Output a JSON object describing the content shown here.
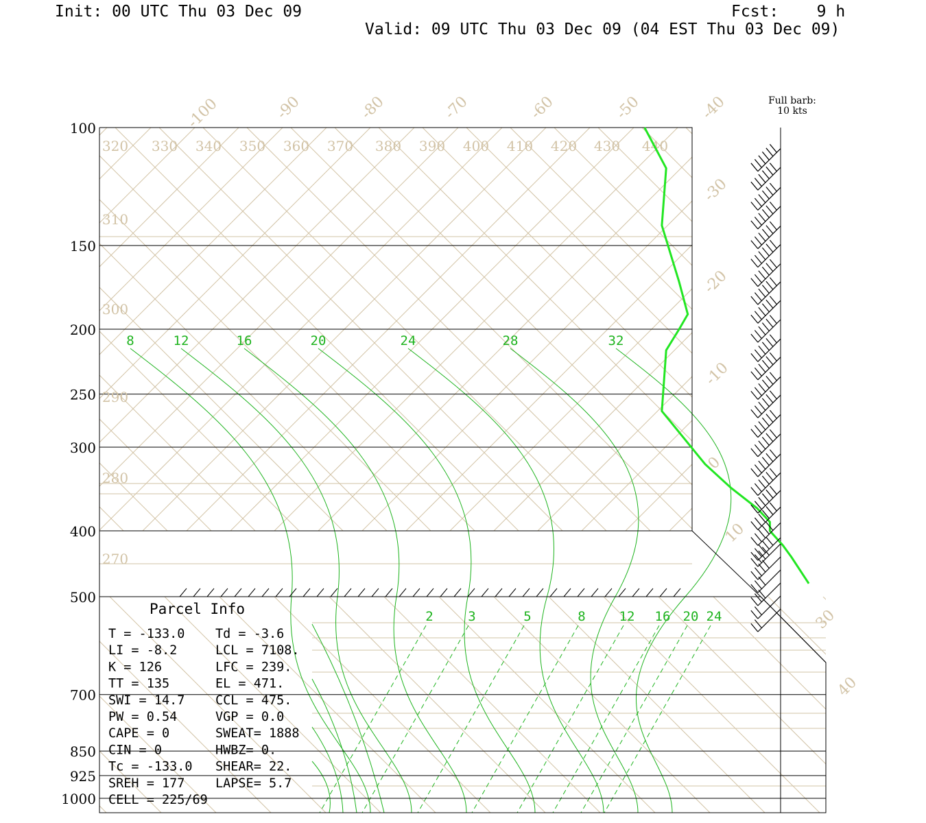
{
  "header": {
    "init": "Init: 00 UTC Thu 03 Dec 09",
    "fcst": "Fcst:    9 h",
    "valid": "Valid: 09 UTC Thu 03 Dec 09 (04 EST Thu 03 Dec 09)"
  },
  "barb_note": {
    "line1": "Full barb:",
    "line2": "10 kts"
  },
  "colors": {
    "isotherm": "#d2c3a6",
    "mixing": "#1db31d",
    "profile": "#22e622",
    "frame": "#000000"
  },
  "chart_data": {
    "type": "skew-t log-p",
    "pressure_levels": [
      "100",
      "150",
      "200",
      "250",
      "300",
      "400",
      "500",
      "700",
      "850",
      "925",
      "1000"
    ],
    "isotherms": [
      "-100",
      "-90",
      "-80",
      "-70",
      "-60",
      "-50",
      "-40",
      "-30",
      "-20",
      "-10",
      "0",
      "10",
      "30",
      "40"
    ],
    "dry_adiabats": [
      "320",
      "330",
      "340",
      "350",
      "360",
      "370",
      "380",
      "390",
      "400",
      "410",
      "420",
      "430",
      "440",
      "310",
      "300",
      "280",
      "270"
    ],
    "dry_adiabat_290_label": "290",
    "mixing_ratio_upper": [
      "8",
      "12",
      "16",
      "20",
      "24",
      "28",
      "32"
    ],
    "mixing_ratio_lower": [
      "2",
      "3",
      "5",
      "8",
      "12",
      "16",
      "20",
      "24"
    ],
    "temperature_profile": [
      {
        "p": 100,
        "t": -51
      },
      {
        "p": 115,
        "t": -46
      },
      {
        "p": 140,
        "t": -47
      },
      {
        "p": 170,
        "t": -43
      },
      {
        "p": 190,
        "t": -41
      },
      {
        "p": 200,
        "t": -43
      },
      {
        "p": 215,
        "t": -46
      },
      {
        "p": 265,
        "t": -47
      },
      {
        "p": 318,
        "t": -37
      },
      {
        "p": 345,
        "t": -31
      },
      {
        "p": 370,
        "t": -25
      },
      {
        "p": 388,
        "t": -22
      },
      {
        "p": 400,
        "t": -22
      },
      {
        "p": 422,
        "t": -19
      },
      {
        "p": 440,
        "t": -17
      },
      {
        "p": 480,
        "t": -13
      }
    ],
    "wind_barbs": {
      "levels_hpa": [
        105,
        112,
        120,
        128,
        137,
        146,
        156,
        166,
        177,
        189,
        202,
        215,
        230,
        245,
        262,
        280,
        300,
        320,
        340,
        360,
        380,
        400,
        420,
        440,
        460,
        480,
        500,
        520
      ],
      "speeds_kt": [
        60,
        60,
        60,
        60,
        60,
        60,
        60,
        60,
        60,
        60,
        60,
        55,
        55,
        55,
        55,
        60,
        60,
        60,
        60,
        55,
        50,
        45,
        40,
        35,
        30,
        25,
        20,
        15
      ]
    },
    "parcel_info": {
      "title": "Parcel Info",
      "rows": [
        [
          "T  =  -133.0",
          "Td =   -3.6"
        ],
        [
          "LI =    -8.2",
          "LCL = 7108."
        ],
        [
          "K  =     126",
          "LFC =  239."
        ],
        [
          "TT =     135",
          "EL  =  471."
        ],
        [
          "SWI =   14.7",
          "CCL =  475."
        ],
        [
          "PW =    0.54",
          "VGP =   0.0"
        ],
        [
          "CAPE =     0",
          "SWEAT= 1888"
        ],
        [
          "CIN =      0",
          "HWBZ=    0."
        ],
        [
          "Tc = -133.0",
          "SHEAR=  22."
        ],
        [
          "SREH =   177",
          "LAPSE=  5.7"
        ],
        [
          "CELL = 225/69",
          ""
        ]
      ]
    }
  }
}
